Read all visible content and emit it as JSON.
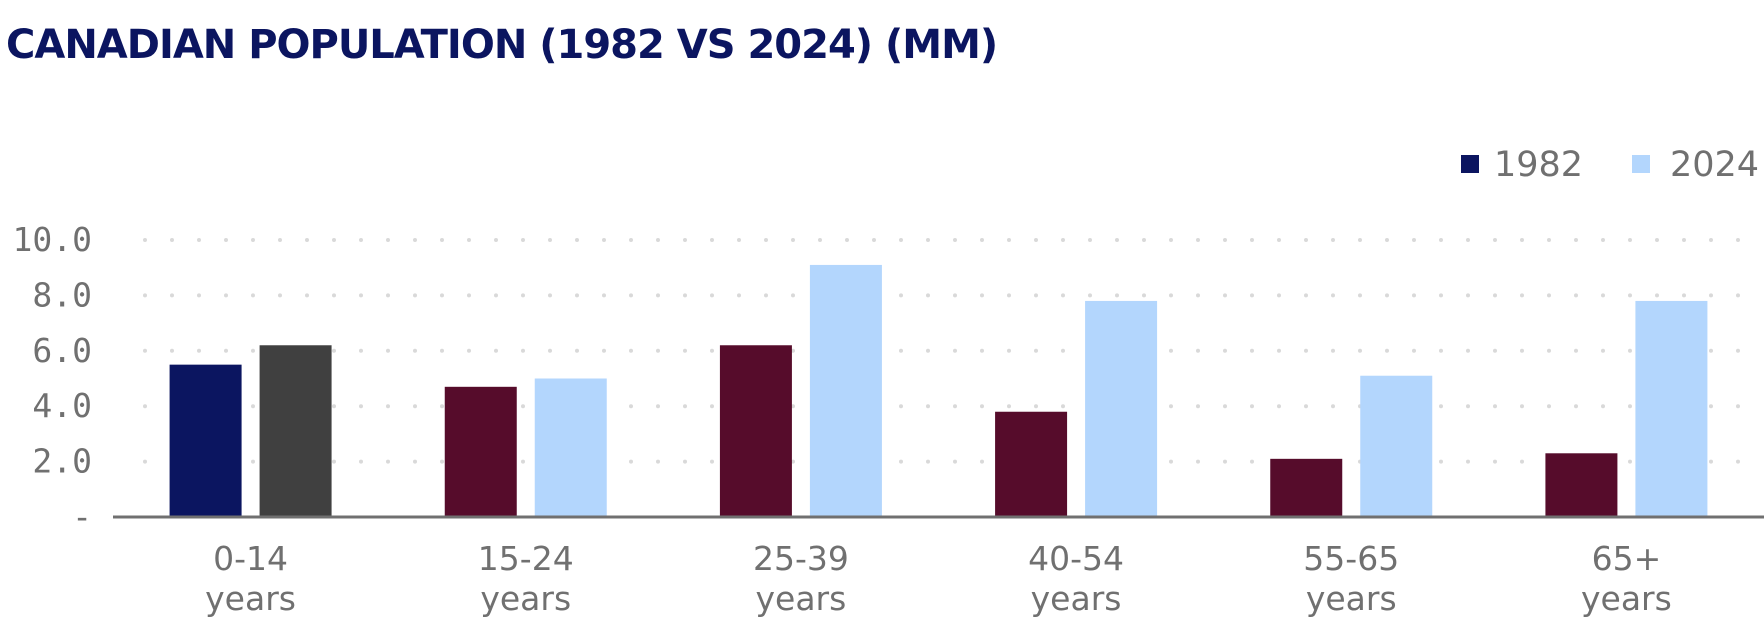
{
  "chart_data": {
    "type": "bar",
    "title": "CANADIAN POPULATION (1982 VS 2024) (MM)",
    "categories": [
      [
        "0-14",
        "years"
      ],
      [
        "15-24",
        "years"
      ],
      [
        "25-39",
        "years"
      ],
      [
        "40-54",
        "years"
      ],
      [
        "55-65",
        "years"
      ],
      [
        "65+",
        "years"
      ]
    ],
    "series": [
      {
        "name": "1982",
        "values": [
          5.5,
          4.7,
          6.2,
          3.8,
          2.1,
          2.3
        ],
        "color": "#560c2b",
        "legend_color": "#0b1560"
      },
      {
        "name": "2024",
        "values": [
          6.2,
          5.0,
          9.1,
          7.8,
          5.1,
          7.8
        ],
        "color": "#b3d6fd",
        "legend_color": "#b3d6fd"
      }
    ],
    "highlight": {
      "category_index": 0,
      "colors": [
        "#0b1560",
        "#404040"
      ]
    },
    "yticks": [
      "-",
      "2.0",
      "4.0",
      "6.0",
      "8.0",
      "10.0"
    ],
    "ylim": [
      0,
      10
    ],
    "grid": true,
    "legend_position": "top-right",
    "xlabel": "",
    "ylabel": ""
  }
}
